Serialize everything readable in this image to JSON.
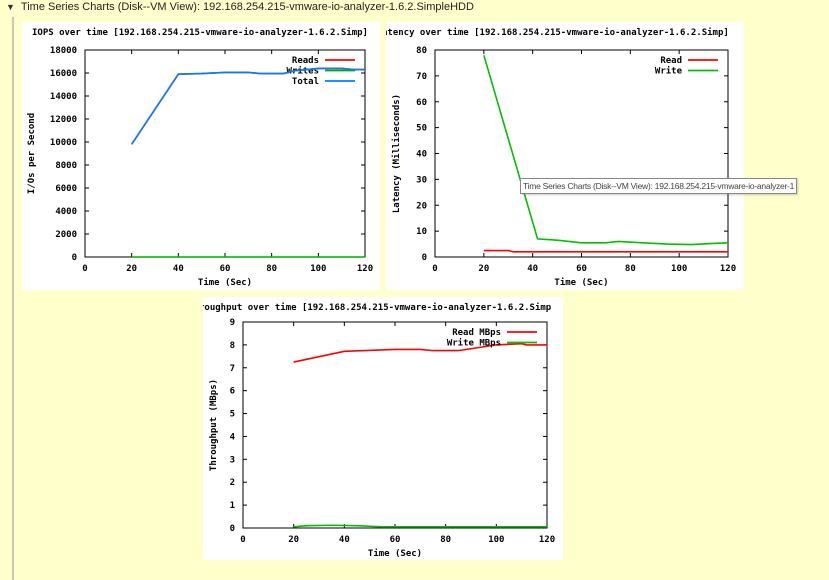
{
  "header": {
    "toggle_icon": "triangle-down-icon",
    "title": "Time Series Charts (Disk--VM View): 192.168.254.215-vmware-io-analyzer-1.6.2.SimpleHDD"
  },
  "tooltip": "Time Series Charts (Disk--VM View): 192.168.254.215-vmware-io-analyzer-1",
  "chart_data": [
    {
      "type": "line",
      "title": "IOPS over time [192.168.254.215-vmware-io-analyzer-1.6.2.Simp]",
      "xlabel": "Time (Sec)",
      "ylabel": "I/Os per Second",
      "xlim": [
        0,
        120
      ],
      "ylim": [
        0,
        18000
      ],
      "xticks": [
        0,
        20,
        40,
        60,
        80,
        100,
        120
      ],
      "yticks": [
        0,
        2000,
        4000,
        6000,
        8000,
        10000,
        12000,
        14000,
        16000,
        18000
      ],
      "legend": "top-right",
      "series": [
        {
          "name": "Reads",
          "color": "#ff0000",
          "x": [
            20,
            40,
            50,
            60,
            70,
            75,
            85,
            90,
            100,
            110,
            115,
            120
          ],
          "y": [
            9800,
            15900,
            15950,
            16050,
            16050,
            15950,
            15950,
            16200,
            16400,
            16400,
            16300,
            16300
          ]
        },
        {
          "name": "Writes",
          "color": "#00aa00",
          "x": [
            20,
            120
          ],
          "y": [
            0,
            0
          ]
        },
        {
          "name": "Total",
          "color": "#0080ff",
          "x": [
            20,
            40,
            50,
            60,
            70,
            75,
            85,
            90,
            100,
            110,
            115,
            120
          ],
          "y": [
            9800,
            15900,
            15950,
            16050,
            16050,
            15950,
            15950,
            16200,
            16400,
            16400,
            16300,
            16300
          ]
        }
      ]
    },
    {
      "type": "line",
      "title": "atency over time [192.168.254.215-vmware-io-analyzer-1.6.2.Simp]",
      "xlabel": "Time (Sec)",
      "ylabel": "Latency (Milliseconds)",
      "xlim": [
        0,
        120
      ],
      "ylim": [
        0,
        80
      ],
      "xticks": [
        0,
        20,
        40,
        60,
        80,
        100,
        120
      ],
      "yticks": [
        0,
        10,
        20,
        30,
        40,
        50,
        60,
        70,
        80
      ],
      "legend": "top-right",
      "series": [
        {
          "name": "Read",
          "color": "#ff0000",
          "x": [
            20,
            30,
            32,
            120
          ],
          "y": [
            2.5,
            2.5,
            2,
            2
          ]
        },
        {
          "name": "Write",
          "color": "#00c000",
          "x": [
            20,
            42,
            50,
            60,
            70,
            75,
            85,
            95,
            105,
            115,
            120
          ],
          "y": [
            78,
            7,
            6.5,
            5.5,
            5.5,
            6,
            5.5,
            5,
            4.8,
            5.3,
            5.5
          ]
        }
      ]
    },
    {
      "type": "line",
      "title": "roughput over time [192.168.254.215-vmware-io-analyzer-1.6.2.Simp",
      "xlabel": "Time (Sec)",
      "ylabel": "Throughput (MBps)",
      "xlim": [
        0,
        120
      ],
      "ylim": [
        0,
        9
      ],
      "xticks": [
        0,
        20,
        40,
        60,
        80,
        100,
        120
      ],
      "yticks": [
        0,
        1,
        2,
        3,
        4,
        5,
        6,
        7,
        8,
        9
      ],
      "legend": "top-right",
      "series": [
        {
          "name": "Read MBps",
          "color": "#ff0000",
          "x": [
            20,
            40,
            60,
            70,
            75,
            85,
            100,
            110,
            112,
            120
          ],
          "y": [
            7.25,
            7.72,
            7.8,
            7.8,
            7.75,
            7.75,
            8,
            8.05,
            8,
            8
          ]
        },
        {
          "name": "Write MBps",
          "color": "#00c000",
          "x": [
            20,
            25,
            35,
            45,
            55,
            120
          ],
          "y": [
            0.05,
            0.1,
            0.12,
            0.1,
            0.05,
            0.05
          ]
        }
      ]
    }
  ]
}
